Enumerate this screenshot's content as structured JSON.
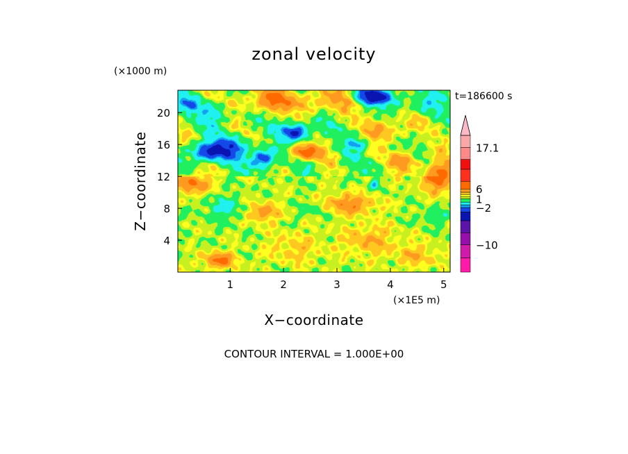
{
  "chart_data": {
    "type": "heatmap",
    "title": "zonal velocity",
    "xlabel": "X−coordinate",
    "ylabel": "Z−coordinate",
    "x_unit": "(×1E5 m)",
    "y_unit": "(×1000 m)",
    "time_label": "t=186600 s",
    "contour_interval_label": "CONTOUR INTERVAL = 1.000E+00",
    "xlim": [
      0.02,
      5.12
    ],
    "ylim": [
      0.0,
      22.8
    ],
    "x_ticks": [
      1,
      2,
      3,
      4,
      5
    ],
    "x_tick_labels": [
      "1",
      "2",
      "3",
      "4",
      "5"
    ],
    "y_ticks": [
      4,
      8,
      12,
      16,
      20
    ],
    "y_tick_labels": [
      "4",
      "8",
      "12",
      "16",
      "20"
    ],
    "colorbar": {
      "tick_values": [
        17.1,
        6,
        1,
        -2,
        -10
      ],
      "tick_labels": [
        "17.1",
        "6",
        "1",
        "−2",
        "−10"
      ],
      "levels": [
        {
          "color": "#ff1aa8"
        },
        {
          "color": "#d01aaa"
        },
        {
          "color": "#9410a8"
        },
        {
          "color": "#5a14a8"
        },
        {
          "color": "#0a14b0"
        },
        {
          "color": "#1448e8"
        },
        {
          "color": "#14a0f0"
        },
        {
          "color": "#20f0f0"
        },
        {
          "color": "#20f060"
        },
        {
          "color": "#c8f020"
        },
        {
          "color": "#ffff20"
        },
        {
          "color": "#ffc820"
        },
        {
          "color": "#ff9a20"
        },
        {
          "color": "#ff6a00"
        },
        {
          "color": "#ff3020"
        },
        {
          "color": "#f01010"
        },
        {
          "color": "#ff8a8a"
        },
        {
          "color": "#f8a8a8"
        },
        {
          "color": "#ffb8c8"
        }
      ]
    },
    "field_value_range": [
      -14,
      17.1
    ],
    "field_blobs": [
      {
        "x": 0.55,
        "z": 15.0,
        "sx": 0.35,
        "sz": 1.2,
        "v": -3.2
      },
      {
        "x": 1.0,
        "z": 15.6,
        "sx": 0.35,
        "sz": 1.4,
        "v": -2.6
      },
      {
        "x": 1.6,
        "z": 14.2,
        "sx": 0.22,
        "sz": 1.2,
        "v": -3.8
      },
      {
        "x": 2.25,
        "z": 17.6,
        "sx": 0.25,
        "sz": 1.1,
        "v": -4.0
      },
      {
        "x": 3.7,
        "z": 22.0,
        "sx": 0.4,
        "sz": 1.0,
        "v": -4.2
      },
      {
        "x": 0.2,
        "z": 21.0,
        "sx": 0.25,
        "sz": 1.0,
        "v": -1.6
      },
      {
        "x": 0.7,
        "z": 20.0,
        "sx": 0.4,
        "sz": 1.5,
        "v": -1.2
      },
      {
        "x": 3.4,
        "z": 16.0,
        "sx": 0.2,
        "sz": 0.6,
        "v": -2.0
      },
      {
        "x": 4.6,
        "z": 21.0,
        "sx": 0.25,
        "sz": 1.2,
        "v": -1.6
      },
      {
        "x": 3.7,
        "z": 11.0,
        "sx": 0.08,
        "sz": 0.6,
        "v": -1.8
      },
      {
        "x": 0.9,
        "z": 8.0,
        "sx": 0.4,
        "sz": 1.5,
        "v": -1.2
      },
      {
        "x": 2.6,
        "z": 8.0,
        "sx": 0.3,
        "sz": 1.0,
        "v": -1.0
      },
      {
        "x": 4.8,
        "z": 7.0,
        "sx": 0.25,
        "sz": 1.0,
        "v": -1.0
      },
      {
        "x": 1.7,
        "z": 21.5,
        "sx": 0.5,
        "sz": 1.4,
        "v": 2.6
      },
      {
        "x": 2.4,
        "z": 15.0,
        "sx": 0.3,
        "sz": 1.0,
        "v": 3.2
      },
      {
        "x": 0.3,
        "z": 11.0,
        "sx": 0.3,
        "sz": 1.2,
        "v": 2.6
      },
      {
        "x": 4.9,
        "z": 12.0,
        "sx": 0.3,
        "sz": 1.8,
        "v": 3.2
      },
      {
        "x": 0.8,
        "z": 1.5,
        "sx": 0.3,
        "sz": 1.0,
        "v": 2.6
      },
      {
        "x": 1.6,
        "z": 7.5,
        "sx": 0.3,
        "sz": 1.2,
        "v": 2.0
      },
      {
        "x": 3.2,
        "z": 8.5,
        "sx": 0.5,
        "sz": 1.2,
        "v": 2.2
      },
      {
        "x": 2.8,
        "z": 21.5,
        "sx": 0.6,
        "sz": 1.5,
        "v": 1.8
      },
      {
        "x": 4.0,
        "z": 18.0,
        "sx": 0.4,
        "sz": 1.5,
        "v": 1.8
      },
      {
        "x": 4.3,
        "z": 14.0,
        "sx": 0.3,
        "sz": 1.3,
        "v": 1.8
      },
      {
        "x": 3.6,
        "z": 4.0,
        "sx": 0.5,
        "sz": 2.0,
        "v": 1.3
      },
      {
        "x": 2.2,
        "z": 3.0,
        "sx": 0.5,
        "sz": 2.0,
        "v": 1.0
      },
      {
        "x": 4.5,
        "z": 2.0,
        "sx": 0.4,
        "sz": 1.5,
        "v": 1.2
      }
    ]
  }
}
